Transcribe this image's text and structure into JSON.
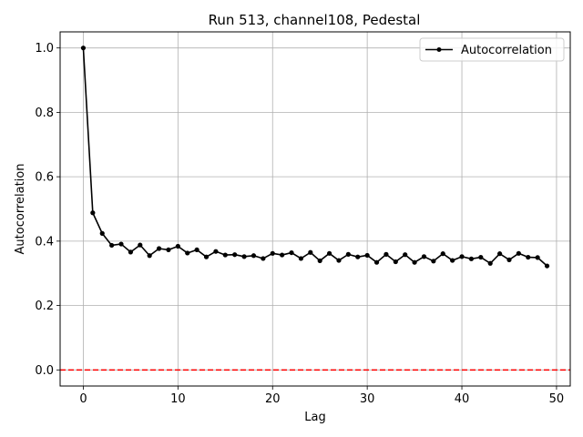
{
  "chart_data": {
    "type": "line",
    "title": "Run 513, channel108, Pedestal",
    "xlabel": "Lag",
    "ylabel": "Autocorrelation",
    "xlim": [
      -2.45,
      51.45
    ],
    "ylim": [
      -0.05,
      1.05
    ],
    "xticks": [
      0,
      10,
      20,
      30,
      40,
      50
    ],
    "yticks": [
      0.0,
      0.2,
      0.4,
      0.6,
      0.8,
      1.0
    ],
    "xtick_labels": [
      "0",
      "10",
      "20",
      "30",
      "40",
      "50"
    ],
    "ytick_labels": [
      "0.0",
      "0.2",
      "0.4",
      "0.6",
      "0.8",
      "1.0"
    ],
    "grid": true,
    "legend_position": "top-right",
    "series": [
      {
        "name": "Autocorrelation",
        "color": "#000000",
        "marker": "circle",
        "x": [
          0,
          1,
          2,
          3,
          4,
          5,
          6,
          7,
          8,
          9,
          10,
          11,
          12,
          13,
          14,
          15,
          16,
          17,
          18,
          19,
          20,
          21,
          22,
          23,
          24,
          25,
          26,
          27,
          28,
          29,
          30,
          31,
          32,
          33,
          34,
          35,
          36,
          37,
          38,
          39,
          40,
          41,
          42,
          43,
          44,
          45,
          46,
          47,
          48,
          49
        ],
        "y": [
          1.0,
          0.488,
          0.424,
          0.387,
          0.391,
          0.366,
          0.388,
          0.355,
          0.377,
          0.373,
          0.384,
          0.363,
          0.373,
          0.351,
          0.368,
          0.357,
          0.358,
          0.352,
          0.355,
          0.346,
          0.362,
          0.357,
          0.364,
          0.346,
          0.365,
          0.339,
          0.362,
          0.34,
          0.359,
          0.351,
          0.356,
          0.334,
          0.359,
          0.336,
          0.358,
          0.334,
          0.352,
          0.338,
          0.361,
          0.34,
          0.352,
          0.345,
          0.35,
          0.331,
          0.361,
          0.342,
          0.362,
          0.35,
          0.349,
          0.323
        ]
      }
    ],
    "reference_line": {
      "y": 0.0,
      "color": "#ff0000",
      "style": "dashed"
    }
  }
}
